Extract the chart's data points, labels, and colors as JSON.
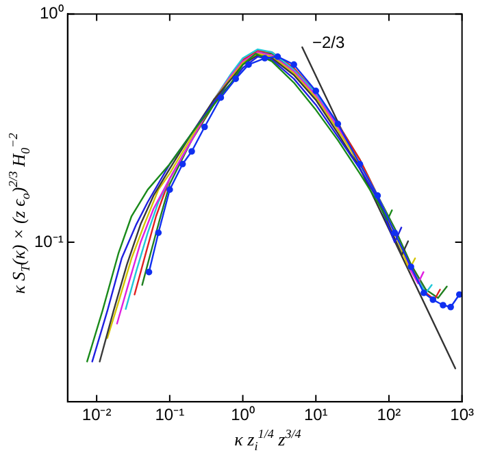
{
  "chart_data": {
    "type": "line",
    "xlabel": "κ z$_{i}$$^{1/4}$ z$^{3/4}$",
    "ylabel": "κ S$_{T}$(κ) × (z ϵ$_{o}$)$^{2/3}$ H$_{0}$$^{−2}$",
    "log": "xy",
    "marker": "none",
    "line_style": "solid",
    "xlim": [
      0.004,
      1000
    ],
    "ylim": [
      0.02,
      1
    ],
    "xticks": [
      {
        "value": 0.01,
        "label": "10⁻²"
      },
      {
        "value": 0.1,
        "label": "10⁻¹"
      },
      {
        "value": 1,
        "label": "10⁰"
      },
      {
        "value": 10,
        "label": "10¹"
      },
      {
        "value": 100,
        "label": "10²"
      },
      {
        "value": 1000,
        "label": "10³"
      }
    ],
    "yticks": [
      {
        "value": 0.1,
        "label": "10⁻¹"
      },
      {
        "value": 1,
        "label": "10⁰"
      }
    ],
    "annotations": [
      "−2/3"
    ],
    "series": [
      {
        "color": "#1a8a1a",
        "x": [
          0.0074,
          0.012,
          0.02,
          0.03,
          0.05,
          0.1,
          0.2,
          0.4,
          0.7,
          1,
          1.5,
          2.5,
          5,
          10,
          20,
          40,
          70,
          95,
          110
        ],
        "values": [
          0.03,
          0.05,
          0.09,
          0.13,
          0.17,
          0.22,
          0.3,
          0.4,
          0.5,
          0.6,
          0.67,
          0.62,
          0.5,
          0.38,
          0.28,
          0.2,
          0.15,
          0.125,
          0.138
        ]
      },
      {
        "color": "#1f1fe0",
        "x": [
          0.0087,
          0.014,
          0.022,
          0.035,
          0.05,
          0.1,
          0.2,
          0.4,
          0.7,
          1,
          1.6,
          2.5,
          5,
          10,
          20,
          40,
          70,
          120,
          148
        ],
        "values": [
          0.03,
          0.05,
          0.085,
          0.12,
          0.15,
          0.22,
          0.3,
          0.41,
          0.5,
          0.58,
          0.65,
          0.63,
          0.52,
          0.4,
          0.29,
          0.21,
          0.155,
          0.1,
          0.116
        ]
      },
      {
        "color": "#3a3a3a",
        "x": [
          0.011,
          0.017,
          0.026,
          0.04,
          0.06,
          0.1,
          0.2,
          0.4,
          0.7,
          1,
          1.6,
          2.5,
          5,
          10,
          20,
          40,
          70,
          150,
          183
        ],
        "values": [
          0.03,
          0.05,
          0.08,
          0.12,
          0.16,
          0.21,
          0.3,
          0.42,
          0.52,
          0.6,
          0.66,
          0.64,
          0.54,
          0.42,
          0.3,
          0.21,
          0.155,
          0.088,
          0.101
        ]
      },
      {
        "color": "#d4c400",
        "x": [
          0.014,
          0.02,
          0.03,
          0.045,
          0.07,
          0.1,
          0.2,
          0.4,
          0.7,
          1,
          1.6,
          2.5,
          5,
          10,
          20,
          40,
          70,
          120,
          190,
          228
        ],
        "values": [
          0.038,
          0.055,
          0.085,
          0.12,
          0.17,
          0.2,
          0.29,
          0.42,
          0.53,
          0.61,
          0.67,
          0.65,
          0.55,
          0.43,
          0.31,
          0.22,
          0.16,
          0.11,
          0.076,
          0.085
        ]
      },
      {
        "color": "#e020e0",
        "x": [
          0.019,
          0.027,
          0.04,
          0.06,
          0.1,
          0.2,
          0.4,
          0.7,
          1,
          1.6,
          2.5,
          5,
          10,
          20,
          40,
          70,
          120,
          200,
          250,
          297
        ],
        "values": [
          0.044,
          0.065,
          0.1,
          0.14,
          0.19,
          0.28,
          0.42,
          0.54,
          0.62,
          0.68,
          0.66,
          0.56,
          0.44,
          0.32,
          0.22,
          0.16,
          0.11,
          0.075,
          0.066,
          0.074
        ]
      },
      {
        "color": "#20c8d8",
        "x": [
          0.025,
          0.035,
          0.05,
          0.07,
          0.1,
          0.2,
          0.4,
          0.7,
          1,
          1.6,
          2.5,
          5,
          10,
          20,
          40,
          70,
          120,
          200,
          320,
          385
        ],
        "values": [
          0.051,
          0.075,
          0.11,
          0.15,
          0.19,
          0.28,
          0.42,
          0.55,
          0.64,
          0.7,
          0.68,
          0.57,
          0.45,
          0.32,
          0.22,
          0.16,
          0.11,
          0.077,
          0.06,
          0.065
        ]
      },
      {
        "color": "#e02020",
        "x": [
          0.033,
          0.045,
          0.065,
          0.1,
          0.2,
          0.4,
          0.7,
          1,
          1.6,
          2.5,
          5,
          10,
          20,
          40,
          70,
          120,
          200,
          320,
          420,
          500
        ],
        "values": [
          0.059,
          0.085,
          0.13,
          0.19,
          0.28,
          0.41,
          0.54,
          0.63,
          0.69,
          0.68,
          0.58,
          0.45,
          0.33,
          0.23,
          0.16,
          0.11,
          0.078,
          0.06,
          0.056,
          0.062
        ]
      },
      {
        "color": "#208020",
        "x": [
          0.042,
          0.055,
          0.075,
          0.1,
          0.2,
          0.4,
          0.7,
          1,
          1.6,
          2.5,
          5,
          10,
          20,
          40,
          70,
          120,
          200,
          320,
          470,
          620
        ],
        "values": [
          0.065,
          0.09,
          0.13,
          0.18,
          0.28,
          0.4,
          0.53,
          0.62,
          0.68,
          0.67,
          0.57,
          0.45,
          0.33,
          0.23,
          0.16,
          0.115,
          0.08,
          0.062,
          0.057,
          0.064
        ]
      },
      {
        "color": "#1030f0",
        "marker": "circle",
        "x": [
          0.052,
          0.07,
          0.1,
          0.15,
          0.2,
          0.3,
          0.5,
          0.8,
          1.2,
          2,
          3,
          5,
          10,
          20,
          40,
          70,
          120,
          200,
          300,
          400,
          550,
          700,
          920
        ],
        "values": [
          0.074,
          0.11,
          0.17,
          0.22,
          0.25,
          0.32,
          0.43,
          0.52,
          0.6,
          0.64,
          0.65,
          0.6,
          0.46,
          0.33,
          0.22,
          0.16,
          0.11,
          0.078,
          0.06,
          0.056,
          0.053,
          0.052,
          0.059
        ]
      },
      {
        "color": "#333333",
        "x": [
          6.5,
          810
        ],
        "values": [
          0.715,
          0.028
        ]
      }
    ]
  }
}
